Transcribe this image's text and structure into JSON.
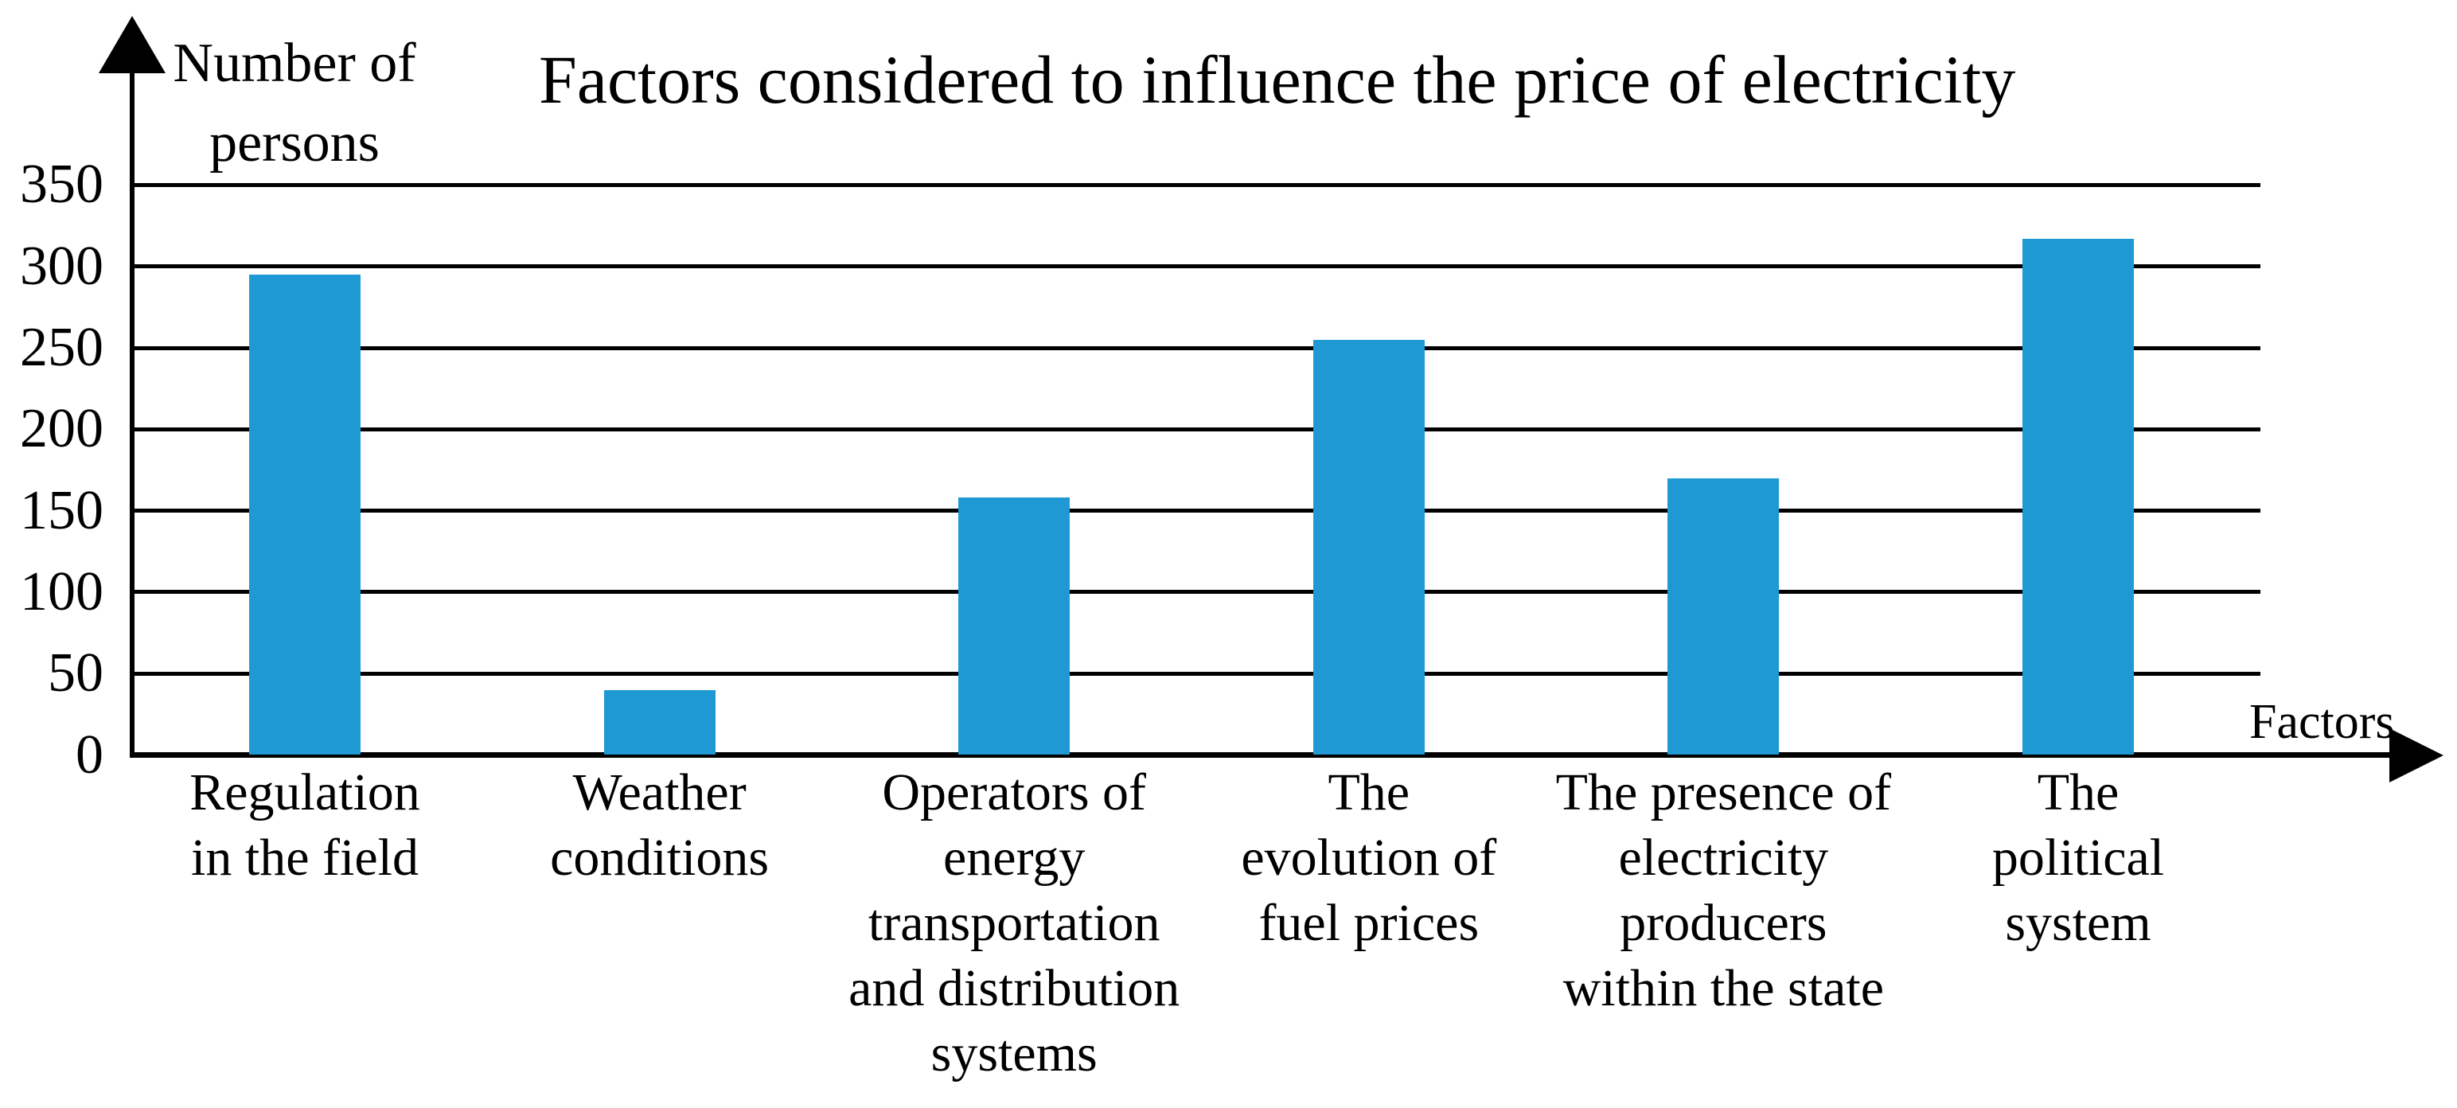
{
  "chart_data": {
    "type": "bar",
    "title": "Factors considered to influence the price of electricity",
    "ylabel": "Number of persons",
    "ylabel_lines": [
      "Number of",
      "persons"
    ],
    "xlabel": "Factors",
    "categories": [
      "Regulation in the field",
      "Weather conditions",
      "Operators of energy transportation and distribution systems",
      "The evolution of fuel prices",
      "The presence of electricity producers within the state",
      "The political system"
    ],
    "category_lines": [
      [
        "Regulation",
        "in the field"
      ],
      [
        "Weather",
        "conditions"
      ],
      [
        "Operators of",
        "energy",
        "transportation",
        "and distribution",
        "systems"
      ],
      [
        "The",
        "evolution of",
        "fuel prices"
      ],
      [
        "The presence of",
        "electricity",
        "producers",
        "within the state"
      ],
      [
        "The",
        "political",
        "system"
      ]
    ],
    "values": [
      295,
      40,
      158,
      255,
      170,
      317
    ],
    "yticks": [
      0,
      50,
      100,
      150,
      200,
      250,
      300,
      350
    ],
    "ylim": [
      0,
      350
    ],
    "grid": true,
    "legend": null,
    "bar_color": "#1F99D4"
  },
  "colors": {
    "bar": "#1F99D4",
    "axis": "#000000",
    "text": "#000000",
    "background": "#FFFFFF"
  }
}
